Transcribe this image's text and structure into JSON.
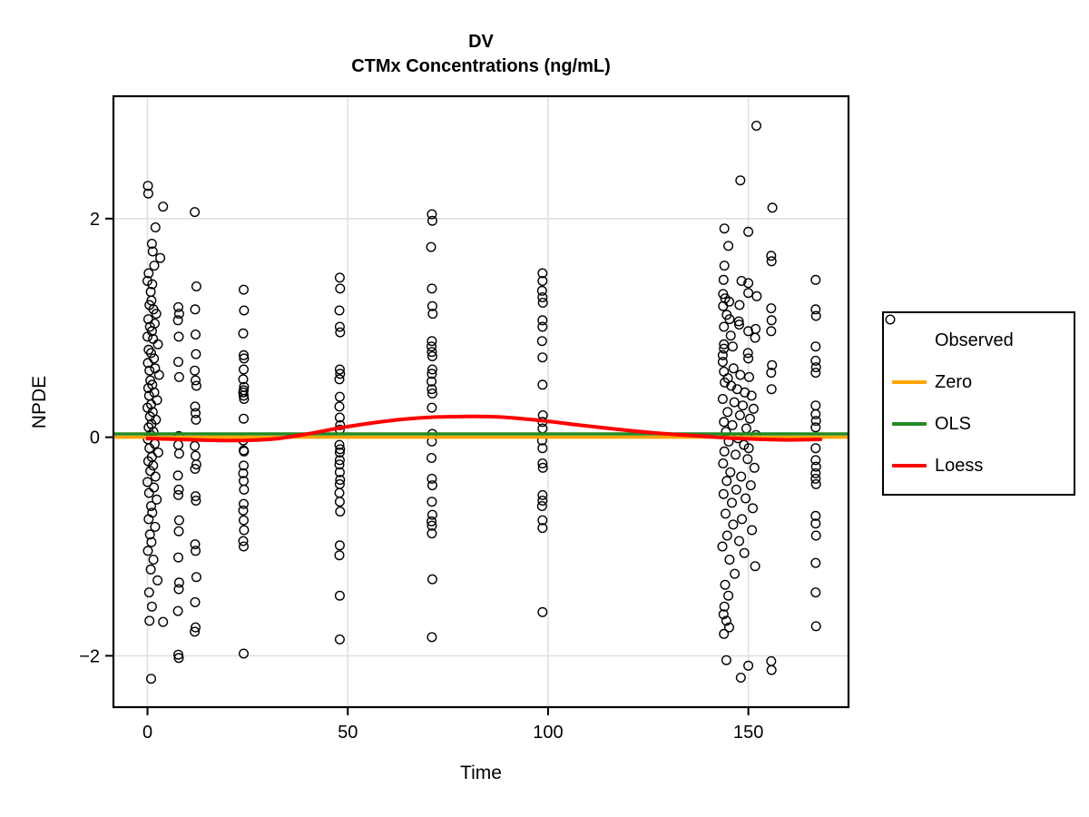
{
  "figure": {
    "background": "#FFFFFF"
  },
  "chart_data": {
    "type": "scatter",
    "title_line1": "DV",
    "title_line2": "CTMx Concentrations (ng/mL)",
    "xlabel": "Time",
    "ylabel": "NPDE",
    "xlim": [
      -8.5,
      175
    ],
    "ylim": [
      -2.47,
      3.12
    ],
    "x_ticks": [
      0,
      50,
      100,
      150
    ],
    "x_tick_labels": [
      "0",
      "50",
      "100",
      "150"
    ],
    "y_ticks": [
      -2,
      0,
      2
    ],
    "y_tick_labels": [
      "−2",
      "0",
      "2"
    ],
    "grid": true,
    "grid_color": "#E0E0E0",
    "frame_color": "#000000",
    "colors": {
      "observed": "#000000",
      "zero": "#FFA500",
      "ols": "#228B22",
      "loess": "#FF0000"
    },
    "legend": {
      "position": "right",
      "items": [
        {
          "label": "Observed",
          "type": "point",
          "color": "#000000"
        },
        {
          "label": "Zero",
          "type": "line",
          "color": "#FFA500"
        },
        {
          "label": "OLS",
          "type": "line",
          "color": "#228B22"
        },
        {
          "label": "Loess",
          "type": "line",
          "color": "#FF0000"
        }
      ]
    },
    "zero_line": {
      "value": 0
    },
    "ols_line": {
      "intercept": 0.03,
      "slope": 0
    },
    "loess_curve": [
      [
        0,
        -0.012
      ],
      [
        8,
        -0.02
      ],
      [
        16,
        -0.028
      ],
      [
        24,
        -0.03
      ],
      [
        32,
        -0.015
      ],
      [
        40,
        0.03
      ],
      [
        48,
        0.085
      ],
      [
        56,
        0.13
      ],
      [
        64,
        0.165
      ],
      [
        72,
        0.185
      ],
      [
        80,
        0.19
      ],
      [
        88,
        0.185
      ],
      [
        99,
        0.15
      ],
      [
        108,
        0.11
      ],
      [
        118,
        0.07
      ],
      [
        128,
        0.035
      ],
      [
        138,
        0.01
      ],
      [
        146,
        -0.01
      ],
      [
        154,
        -0.02
      ],
      [
        160,
        -0.025
      ],
      [
        168,
        -0.02
      ]
    ],
    "observed_points": [
      [
        0.1,
        2.3
      ],
      [
        0.2,
        2.23
      ],
      [
        3.9,
        2.11
      ],
      [
        2.0,
        1.92
      ],
      [
        1.1,
        1.77
      ],
      [
        1.3,
        1.7
      ],
      [
        3.2,
        1.64
      ],
      [
        1.7,
        1.57
      ],
      [
        0.3,
        1.5
      ],
      [
        0.0,
        1.43
      ],
      [
        1.2,
        1.4
      ],
      [
        0.8,
        1.33
      ],
      [
        1.0,
        1.25
      ],
      [
        0.5,
        1.21
      ],
      [
        1.5,
        1.17
      ],
      [
        2.2,
        1.13
      ],
      [
        0.2,
        1.08
      ],
      [
        1.8,
        1.04
      ],
      [
        0.6,
        1.01
      ],
      [
        1.1,
        0.97
      ],
      [
        0.0,
        0.92
      ],
      [
        1.4,
        0.9
      ],
      [
        2.6,
        0.85
      ],
      [
        0.3,
        0.8
      ],
      [
        0.9,
        0.77
      ],
      [
        1.6,
        0.72
      ],
      [
        0.1,
        0.68
      ],
      [
        1.9,
        0.63
      ],
      [
        0.5,
        0.61
      ],
      [
        2.9,
        0.57
      ],
      [
        0.7,
        0.52
      ],
      [
        1.2,
        0.48
      ],
      [
        0.2,
        0.45
      ],
      [
        1.7,
        0.41
      ],
      [
        0.4,
        0.38
      ],
      [
        2.4,
        0.34
      ],
      [
        0.9,
        0.3
      ],
      [
        0.0,
        0.27
      ],
      [
        1.3,
        0.23
      ],
      [
        0.6,
        0.19
      ],
      [
        2.1,
        0.16
      ],
      [
        1.0,
        0.12
      ],
      [
        0.3,
        0.09
      ],
      [
        1.5,
        0.05
      ],
      [
        0.8,
        0.02
      ],
      [
        0.1,
        -0.02
      ],
      [
        1.8,
        -0.06
      ],
      [
        0.5,
        -0.1
      ],
      [
        2.7,
        -0.14
      ],
      [
        1.1,
        -0.18
      ],
      [
        0.2,
        -0.22
      ],
      [
        1.4,
        -0.26
      ],
      [
        0.7,
        -0.31
      ],
      [
        2.0,
        -0.36
      ],
      [
        0.0,
        -0.41
      ],
      [
        1.6,
        -0.46
      ],
      [
        0.4,
        -0.51
      ],
      [
        2.3,
        -0.57
      ],
      [
        0.9,
        -0.63
      ],
      [
        1.2,
        -0.69
      ],
      [
        0.3,
        -0.75
      ],
      [
        1.9,
        -0.82
      ],
      [
        0.6,
        -0.89
      ],
      [
        1.0,
        -0.96
      ],
      [
        0.1,
        -1.04
      ],
      [
        1.5,
        -1.12
      ],
      [
        0.8,
        -1.21
      ],
      [
        2.5,
        -1.31
      ],
      [
        0.4,
        -1.42
      ],
      [
        1.1,
        -1.55
      ],
      [
        0.5,
        -1.68
      ],
      [
        3.9,
        -1.69
      ],
      [
        0.9,
        -2.21
      ],
      [
        7.7,
        1.19
      ],
      [
        7.9,
        1.13
      ],
      [
        7.6,
        1.07
      ],
      [
        7.8,
        0.92
      ],
      [
        7.7,
        0.69
      ],
      [
        7.9,
        0.55
      ],
      [
        7.8,
        0.01
      ],
      [
        7.7,
        -0.07
      ],
      [
        7.9,
        -0.15
      ],
      [
        7.6,
        -0.35
      ],
      [
        7.8,
        -0.48
      ],
      [
        7.7,
        -0.53
      ],
      [
        7.9,
        -0.76
      ],
      [
        7.8,
        -0.86
      ],
      [
        7.7,
        -1.1
      ],
      [
        7.9,
        -1.33
      ],
      [
        7.8,
        -1.39
      ],
      [
        7.6,
        -1.59
      ],
      [
        7.7,
        -1.99
      ],
      [
        7.8,
        -2.02
      ],
      [
        11.8,
        2.06
      ],
      [
        12.2,
        1.38
      ],
      [
        11.9,
        1.17
      ],
      [
        12.0,
        0.94
      ],
      [
        12.1,
        0.76
      ],
      [
        11.8,
        0.61
      ],
      [
        12.0,
        0.52
      ],
      [
        12.2,
        0.47
      ],
      [
        11.9,
        0.28
      ],
      [
        12.0,
        0.22
      ],
      [
        12.1,
        0.16
      ],
      [
        11.8,
        -0.08
      ],
      [
        12.0,
        -0.17
      ],
      [
        12.2,
        -0.25
      ],
      [
        11.9,
        -0.29
      ],
      [
        12.0,
        -0.54
      ],
      [
        12.1,
        -0.58
      ],
      [
        11.9,
        -0.98
      ],
      [
        12.0,
        -1.04
      ],
      [
        12.2,
        -1.28
      ],
      [
        11.9,
        -1.51
      ],
      [
        12.0,
        -1.74
      ],
      [
        11.8,
        -1.78
      ],
      [
        24.0,
        1.35
      ],
      [
        24.1,
        1.16
      ],
      [
        23.9,
        0.95
      ],
      [
        24.0,
        0.75
      ],
      [
        24.1,
        0.72
      ],
      [
        24.0,
        0.62
      ],
      [
        23.9,
        0.53
      ],
      [
        24.1,
        0.46
      ],
      [
        24.0,
        0.43
      ],
      [
        23.9,
        0.41
      ],
      [
        24.0,
        0.38
      ],
      [
        24.1,
        0.35
      ],
      [
        24.0,
        0.17
      ],
      [
        23.9,
        -0.03
      ],
      [
        24.0,
        -0.12
      ],
      [
        24.1,
        -0.13
      ],
      [
        24.0,
        -0.26
      ],
      [
        23.9,
        -0.33
      ],
      [
        24.0,
        -0.4
      ],
      [
        24.1,
        -0.48
      ],
      [
        24.0,
        -0.61
      ],
      [
        23.9,
        -0.67
      ],
      [
        24.0,
        -0.76
      ],
      [
        24.1,
        -0.85
      ],
      [
        23.9,
        -0.95
      ],
      [
        24.0,
        -1.0
      ],
      [
        24.0,
        -1.98
      ],
      [
        48.0,
        1.46
      ],
      [
        48.1,
        1.36
      ],
      [
        47.9,
        1.16
      ],
      [
        48.0,
        1.01
      ],
      [
        48.1,
        0.96
      ],
      [
        48.0,
        0.62
      ],
      [
        48.1,
        0.58
      ],
      [
        47.9,
        0.53
      ],
      [
        48.0,
        0.37
      ],
      [
        47.9,
        0.28
      ],
      [
        48.0,
        0.18
      ],
      [
        48.1,
        0.11
      ],
      [
        48.0,
        0.07
      ],
      [
        47.9,
        -0.07
      ],
      [
        48.1,
        -0.11
      ],
      [
        48.0,
        -0.14
      ],
      [
        48.0,
        -0.21
      ],
      [
        47.9,
        -0.25
      ],
      [
        48.0,
        -0.32
      ],
      [
        48.1,
        -0.39
      ],
      [
        48.0,
        -0.43
      ],
      [
        47.9,
        -0.51
      ],
      [
        48.0,
        -0.59
      ],
      [
        48.1,
        -0.68
      ],
      [
        48.0,
        -0.99
      ],
      [
        47.9,
        -1.08
      ],
      [
        48.0,
        -1.45
      ],
      [
        48.0,
        -1.85
      ],
      [
        71.0,
        2.04
      ],
      [
        71.1,
        1.98
      ],
      [
        70.8,
        1.74
      ],
      [
        71.0,
        1.36
      ],
      [
        71.1,
        1.2
      ],
      [
        71.2,
        1.13
      ],
      [
        71.0,
        0.88
      ],
      [
        70.9,
        0.83
      ],
      [
        71.0,
        0.78
      ],
      [
        71.1,
        0.74
      ],
      [
        71.1,
        0.62
      ],
      [
        71.0,
        0.58
      ],
      [
        70.9,
        0.51
      ],
      [
        71.0,
        0.44
      ],
      [
        71.1,
        0.4
      ],
      [
        71.0,
        0.27
      ],
      [
        71.1,
        0.03
      ],
      [
        71.0,
        -0.04
      ],
      [
        70.9,
        -0.19
      ],
      [
        71.0,
        -0.38
      ],
      [
        71.1,
        -0.44
      ],
      [
        71.0,
        -0.59
      ],
      [
        71.1,
        -0.71
      ],
      [
        70.9,
        -0.77
      ],
      [
        71.0,
        -0.81
      ],
      [
        71.0,
        -0.88
      ],
      [
        71.1,
        -1.3
      ],
      [
        71.0,
        -1.83
      ],
      [
        98.6,
        1.5
      ],
      [
        98.6,
        1.43
      ],
      [
        98.5,
        1.34
      ],
      [
        98.6,
        1.28
      ],
      [
        98.7,
        1.23
      ],
      [
        98.6,
        1.07
      ],
      [
        98.6,
        1.01
      ],
      [
        98.5,
        0.88
      ],
      [
        98.6,
        0.73
      ],
      [
        98.6,
        0.48
      ],
      [
        98.7,
        0.2
      ],
      [
        98.6,
        0.14
      ],
      [
        98.6,
        0.08
      ],
      [
        98.5,
        -0.03
      ],
      [
        98.6,
        -0.1
      ],
      [
        98.6,
        -0.24
      ],
      [
        98.7,
        -0.28
      ],
      [
        98.6,
        -0.53
      ],
      [
        98.6,
        -0.58
      ],
      [
        98.5,
        -0.63
      ],
      [
        98.6,
        -0.76
      ],
      [
        98.6,
        -0.83
      ],
      [
        98.6,
        -1.6
      ],
      [
        152.0,
        2.85
      ],
      [
        148.0,
        2.35
      ],
      [
        144.0,
        1.91
      ],
      [
        150.0,
        1.88
      ],
      [
        145.0,
        1.75
      ],
      [
        144.0,
        1.57
      ],
      [
        143.8,
        1.44
      ],
      [
        148.3,
        1.43
      ],
      [
        150.0,
        1.41
      ],
      [
        150.0,
        1.32
      ],
      [
        143.7,
        1.31
      ],
      [
        152.1,
        1.29
      ],
      [
        144.2,
        1.27
      ],
      [
        145.2,
        1.24
      ],
      [
        147.8,
        1.21
      ],
      [
        143.7,
        1.2
      ],
      [
        144.6,
        1.12
      ],
      [
        145.3,
        1.08
      ],
      [
        147.6,
        1.06
      ],
      [
        147.7,
        1.03
      ],
      [
        143.9,
        1.01
      ],
      [
        151.8,
        0.99
      ],
      [
        150.0,
        0.97
      ],
      [
        145.6,
        0.93
      ],
      [
        151.7,
        0.91
      ],
      [
        143.9,
        0.85
      ],
      [
        146.1,
        0.83
      ],
      [
        143.9,
        0.81
      ],
      [
        149.9,
        0.77
      ],
      [
        143.6,
        0.75
      ],
      [
        150.0,
        0.72
      ],
      [
        143.6,
        0.69
      ],
      [
        146.3,
        0.63
      ],
      [
        143.9,
        0.6
      ],
      [
        148.0,
        0.57
      ],
      [
        150.2,
        0.55
      ],
      [
        144.9,
        0.54
      ],
      [
        144.1,
        0.5
      ],
      [
        145.7,
        0.47
      ],
      [
        147.2,
        0.44
      ],
      [
        149.1,
        0.41
      ],
      [
        150.8,
        0.38
      ],
      [
        143.6,
        0.35
      ],
      [
        146.5,
        0.32
      ],
      [
        148.6,
        0.29
      ],
      [
        151.3,
        0.26
      ],
      [
        144.8,
        0.23
      ],
      [
        147.9,
        0.2
      ],
      [
        150.4,
        0.17
      ],
      [
        143.9,
        0.14
      ],
      [
        146.0,
        0.11
      ],
      [
        149.5,
        0.08
      ],
      [
        144.4,
        0.05
      ],
      [
        151.9,
        0.02
      ],
      [
        147.4,
        -0.01
      ],
      [
        145.1,
        -0.04
      ],
      [
        148.9,
        -0.07
      ],
      [
        150.1,
        -0.1
      ],
      [
        144.0,
        -0.13
      ],
      [
        146.8,
        -0.16
      ],
      [
        149.8,
        -0.2
      ],
      [
        143.7,
        -0.24
      ],
      [
        151.5,
        -0.28
      ],
      [
        145.5,
        -0.32
      ],
      [
        148.2,
        -0.36
      ],
      [
        144.6,
        -0.4
      ],
      [
        150.6,
        -0.44
      ],
      [
        147.0,
        -0.48
      ],
      [
        143.8,
        -0.52
      ],
      [
        149.3,
        -0.56
      ],
      [
        145.9,
        -0.6
      ],
      [
        151.1,
        -0.65
      ],
      [
        144.3,
        -0.7
      ],
      [
        148.4,
        -0.75
      ],
      [
        146.2,
        -0.8
      ],
      [
        150.9,
        -0.85
      ],
      [
        144.7,
        -0.9
      ],
      [
        147.7,
        -0.95
      ],
      [
        143.5,
        -1.0
      ],
      [
        149.0,
        -1.06
      ],
      [
        145.3,
        -1.12
      ],
      [
        151.7,
        -1.18
      ],
      [
        146.6,
        -1.25
      ],
      [
        144.2,
        -1.35
      ],
      [
        145.0,
        -1.45
      ],
      [
        144.0,
        -1.55
      ],
      [
        143.8,
        -1.62
      ],
      [
        144.5,
        -1.68
      ],
      [
        145.2,
        -1.74
      ],
      [
        143.9,
        -1.8
      ],
      [
        144.5,
        -2.04
      ],
      [
        150.0,
        -2.09
      ],
      [
        148.1,
        -2.2
      ],
      [
        156.0,
        2.1
      ],
      [
        155.7,
        1.66
      ],
      [
        155.8,
        1.61
      ],
      [
        155.7,
        1.18
      ],
      [
        155.8,
        1.07
      ],
      [
        155.7,
        0.97
      ],
      [
        155.9,
        0.66
      ],
      [
        155.7,
        0.59
      ],
      [
        155.8,
        0.44
      ],
      [
        155.7,
        -2.05
      ],
      [
        155.8,
        -2.13
      ],
      [
        166.8,
        1.44
      ],
      [
        166.8,
        1.17
      ],
      [
        166.9,
        1.11
      ],
      [
        166.8,
        0.83
      ],
      [
        166.8,
        0.7
      ],
      [
        166.9,
        0.64
      ],
      [
        166.8,
        0.59
      ],
      [
        166.8,
        0.29
      ],
      [
        166.8,
        0.21
      ],
      [
        166.9,
        0.15
      ],
      [
        166.8,
        0.09
      ],
      [
        166.8,
        -0.1
      ],
      [
        166.8,
        -0.21
      ],
      [
        166.9,
        -0.27
      ],
      [
        166.8,
        -0.33
      ],
      [
        166.8,
        -0.38
      ],
      [
        166.9,
        -0.43
      ],
      [
        166.8,
        -0.72
      ],
      [
        166.8,
        -0.79
      ],
      [
        166.9,
        -0.9
      ],
      [
        166.8,
        -1.15
      ],
      [
        166.8,
        -1.42
      ],
      [
        166.9,
        -1.73
      ]
    ]
  }
}
